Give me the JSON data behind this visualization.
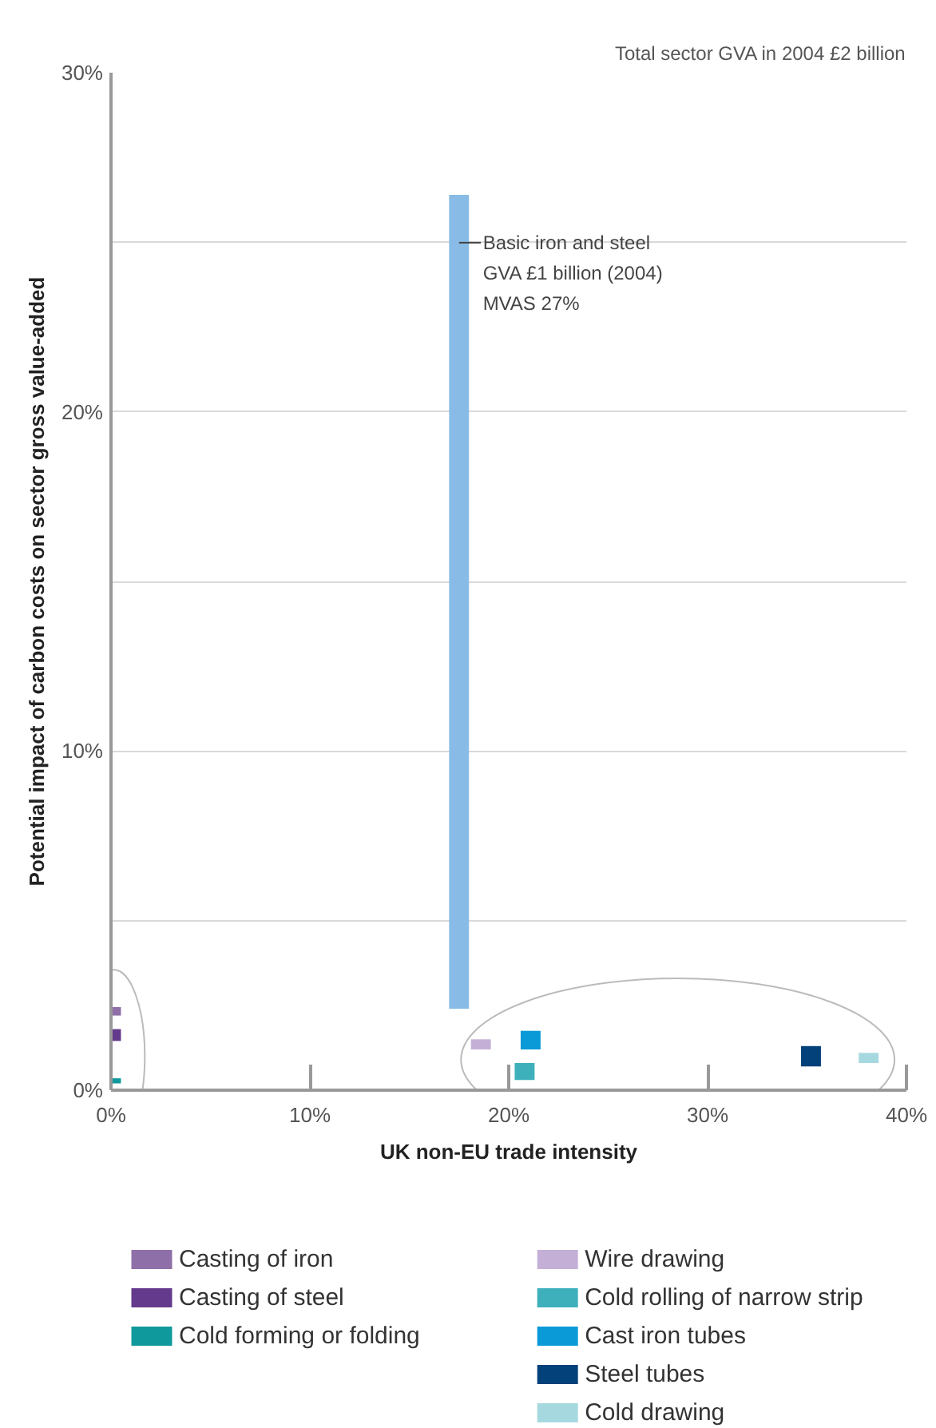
{
  "chart_data": {
    "type": "bar",
    "title": "Total sector GVA in 2004 £2 billion",
    "xlabel": "UK non-EU trade intensity",
    "ylabel": "Potential impact of carbon costs on sector gross value-added",
    "series": [
      {
        "name": "Casting of iron",
        "color": "#8e6fa8",
        "x": [
          0.0
        ],
        "base": [
          2.2
        ],
        "values": [
          0.25
        ]
      },
      {
        "name": "Casting of steel",
        "color": "#643a8c",
        "x": [
          0.0
        ],
        "base": [
          1.45
        ],
        "values": [
          0.35
        ]
      },
      {
        "name": "Cold forming or folding",
        "color": "#10999c",
        "x": [
          0.0
        ],
        "base": [
          0.2
        ],
        "values": [
          0.15
        ]
      },
      {
        "color": "#88bce6",
        "x": [
          17.5
        ],
        "base": [
          2.4
        ],
        "values": [
          24.0
        ]
      },
      {
        "name": "Wire drawing",
        "color": "#c4b0d6",
        "x": [
          18.6
        ],
        "base": [
          1.2
        ],
        "values": [
          0.3
        ]
      },
      {
        "name": "Cold rolling of narrow strip",
        "color": "#3eb0bb",
        "x": [
          20.8
        ],
        "base": [
          0.3
        ],
        "values": [
          0.5
        ]
      },
      {
        "name": "Cast iron tubes",
        "color": "#0a9ad8",
        "x": [
          21.1
        ],
        "base": [
          1.2
        ],
        "values": [
          0.55
        ]
      },
      {
        "name": "Steel tubes",
        "color": "#02417a",
        "x": [
          35.2
        ],
        "base": [
          0.7
        ],
        "values": [
          0.6
        ]
      },
      {
        "name": "Cold drawing",
        "color": "#a6d9df",
        "x": [
          38.1
        ],
        "base": [
          0.8
        ],
        "values": [
          0.3
        ]
      }
    ],
    "annotations": [
      "Basic iron and steel",
      "GVA £1 billion (2004)",
      "MVAS 27%"
    ],
    "xlim": [
      0,
      40
    ],
    "ylim": [
      0,
      30
    ],
    "xticks": [
      {
        "value": 0,
        "label": "0%"
      },
      {
        "value": 10,
        "label": "10%"
      },
      {
        "value": 20,
        "label": "20%"
      },
      {
        "value": 30,
        "label": "30%"
      },
      {
        "value": 40,
        "label": "40%"
      }
    ],
    "yticks": [
      {
        "value": 0,
        "label": "0%"
      },
      {
        "value": 5,
        "label": null
      },
      {
        "value": 10,
        "label": "10%"
      },
      {
        "value": 15,
        "label": null
      },
      {
        "value": 20,
        "label": "20%"
      },
      {
        "value": 25,
        "label": null
      },
      {
        "value": 30,
        "label": "30%"
      }
    ],
    "grid": "y",
    "legend": "bottom"
  }
}
